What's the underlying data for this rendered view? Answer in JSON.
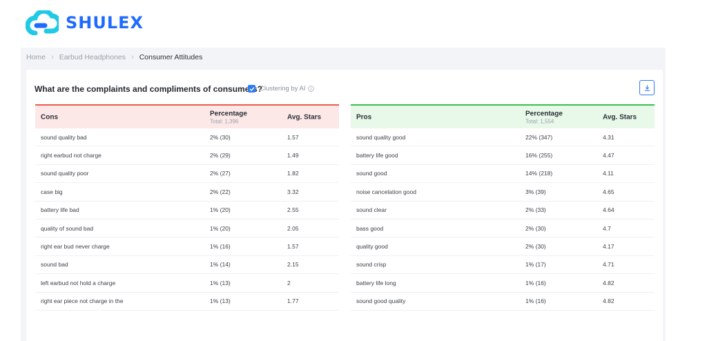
{
  "brand": {
    "name": "SHULEX",
    "color": "#1f6bff"
  },
  "breadcrumb": [
    "Home",
    "Earbud Headphones",
    "Consumer Attitudes"
  ],
  "question": "What are the complaints and compliments of consumers?",
  "clustering": {
    "label": "Clustering by AI",
    "checked": true,
    "icon": "info-icon"
  },
  "download": {
    "icon": "download-icon"
  },
  "cons": {
    "header": {
      "name": "Cons",
      "percentage": "Percentage",
      "total": "Total: 1,396",
      "stars": "Avg. Stars"
    },
    "accent": "#ef5a4c",
    "rows": [
      {
        "name": "sound quality bad",
        "pct": "2% (30)",
        "stars": "1.57"
      },
      {
        "name": "right earbud not charge",
        "pct": "2% (29)",
        "stars": "1.49"
      },
      {
        "name": "sound quality poor",
        "pct": "2% (27)",
        "stars": "1.82"
      },
      {
        "name": "case big",
        "pct": "2% (22)",
        "stars": "3.32"
      },
      {
        "name": "battery life bad",
        "pct": "1% (20)",
        "stars": "2.55"
      },
      {
        "name": "quality of sound bad",
        "pct": "1% (20)",
        "stars": "2.05"
      },
      {
        "name": "right ear bud never charge",
        "pct": "1% (16)",
        "stars": "1.57"
      },
      {
        "name": "sound bad",
        "pct": "1% (14)",
        "stars": "2.15"
      },
      {
        "name": "left earbud not hold a charge",
        "pct": "1% (13)",
        "stars": "2"
      },
      {
        "name": "right ear piece not charge in the",
        "pct": "1% (13)",
        "stars": "1.77"
      }
    ]
  },
  "pros": {
    "header": {
      "name": "Pros",
      "percentage": "Percentage",
      "total": "Total: 1,554",
      "stars": "Avg. Stars"
    },
    "accent": "#35c24a",
    "rows": [
      {
        "name": "sound quality good",
        "pct": "22% (347)",
        "stars": "4.31"
      },
      {
        "name": "battery life good",
        "pct": "16% (255)",
        "stars": "4.47"
      },
      {
        "name": "sound good",
        "pct": "14% (218)",
        "stars": "4.11"
      },
      {
        "name": "noise cancelation good",
        "pct": "3% (39)",
        "stars": "4.65"
      },
      {
        "name": "sound clear",
        "pct": "2% (33)",
        "stars": "4.64"
      },
      {
        "name": "bass good",
        "pct": "2% (30)",
        "stars": "4.7"
      },
      {
        "name": "quality good",
        "pct": "2% (30)",
        "stars": "4.17"
      },
      {
        "name": "sound crisp",
        "pct": "1% (17)",
        "stars": "4.71"
      },
      {
        "name": "battery life long",
        "pct": "1% (16)",
        "stars": "4.82"
      },
      {
        "name": "sound good quality",
        "pct": "1% (16)",
        "stars": "4.82"
      }
    ]
  }
}
